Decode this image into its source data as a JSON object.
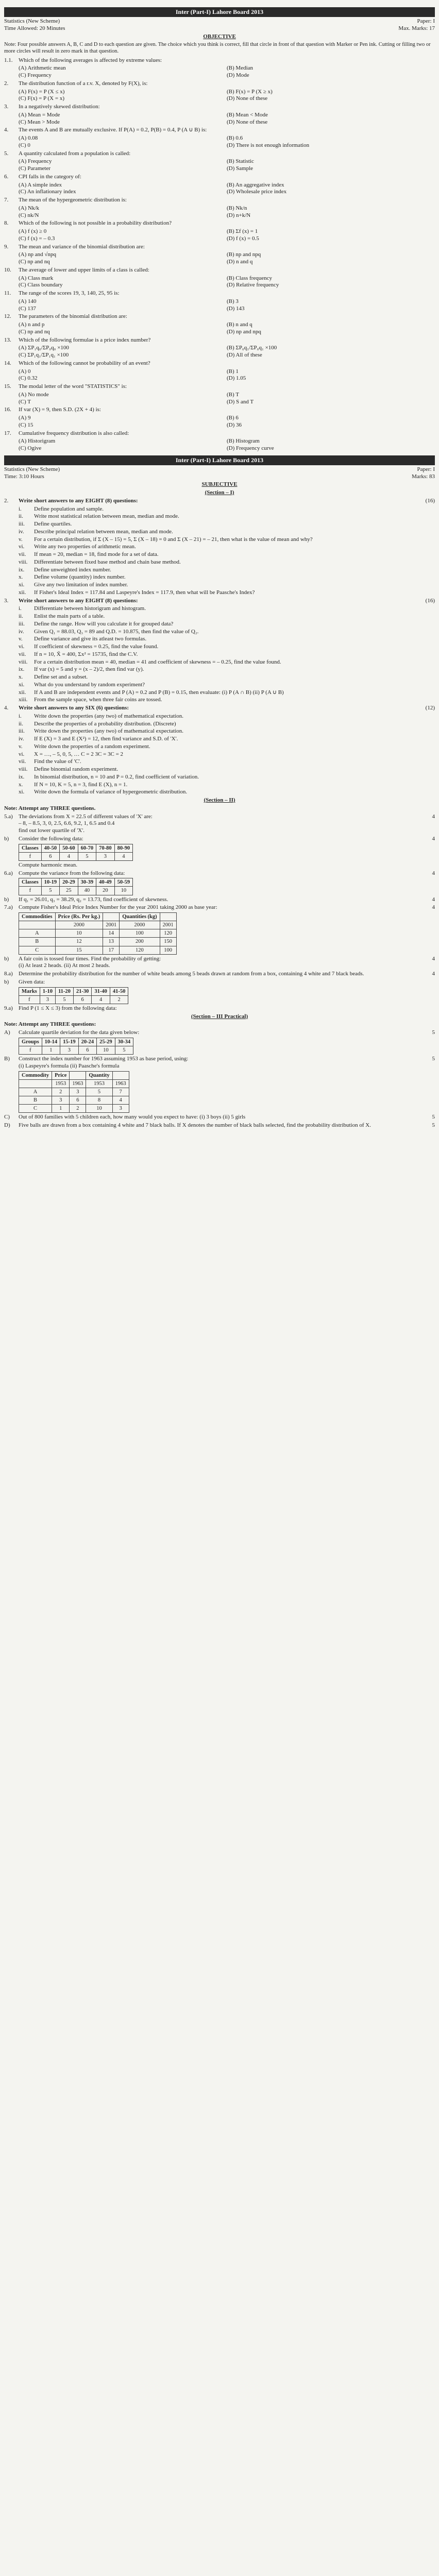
{
  "exam": {
    "title1": "Inter (Part-I) Lahore Board 2013",
    "title2": "Inter (Part-I) Lahore Board 2013",
    "subject": "Statistics (New Scheme)",
    "paper": "Paper: I",
    "time_obj": "Time Allowed: 20 Minutes",
    "marks_obj": "Max. Marks: 17",
    "time_subj": "Time: 3:10 Hours",
    "marks_subj": "Marks: 83",
    "objective_label": "OBJECTIVE",
    "subjective_label": "SUBJECTIVE",
    "section1": "(Section – I)",
    "section2": "(Section – II)",
    "section3": "(Section – III Practical)",
    "note_obj": "Note: Four possible answers A, B, C and D to each question are given. The choice which you think is correct, fill that circle in front of that question with Marker or Pen ink. Cutting or filling two or more circles will result in zero mark in that question.",
    "note_short2": "Write short answers to any EIGHT (8) questions:",
    "note_short3": "Write short answers to any EIGHT (8) questions:",
    "note_short4": "Write short answers to any SIX (6) questions:",
    "note_sec2": "Note: Attempt any THREE questions.",
    "note_sec3": "Note: Attempt any THREE questions:",
    "marks16": "(16)",
    "marks12": "(12)"
  },
  "obj_q": [
    {
      "n": "1.1.",
      "t": "Which of the following averages is affected by extreme values:",
      "o": [
        "(A) Arithmetic mean",
        "(B) Median",
        "(C) Frequency",
        "(D) Mode"
      ]
    },
    {
      "n": "2.",
      "t": "The distribution function of a r.v. X, denoted by F(X), is:",
      "o": [
        "(A) F(x) = P (X ≤ x)",
        "(B) F(x) = P (X ≥ x)",
        "(C) F(x) = P (X = x)",
        "(D) None of these"
      ]
    },
    {
      "n": "3.",
      "t": "In a negatively skewed distribution:",
      "o": [
        "(A) Mean = Mode",
        "(B) Mean < Mode",
        "(C) Mean > Mode",
        "(D) None of these"
      ]
    },
    {
      "n": "4.",
      "t": "The events A and B are mutually exclusive. If P(A) = 0.2, P(B) = 0.4, P (A ∪ B) is:",
      "o": [
        "(A) 0.08",
        "(B) 0.6",
        "(C) 0",
        "(D) There is not enough information"
      ],
      "w4": false
    },
    {
      "n": "5.",
      "t": "A quantity calculated from a population is called:",
      "o": [
        "(A) Frequency",
        "(B) Statistic",
        "(C) Parameter",
        "(D) Sample"
      ]
    },
    {
      "n": "6.",
      "t": "CPI falls in the category of:",
      "o": [
        "(A) A simple index",
        "(B) An aggregative index",
        "(C) An inflationary index",
        "(D) Wholesale price index"
      ]
    },
    {
      "n": "7.",
      "t": "The mean of the hypergeometric distribution is:",
      "o": [
        "(A) Nk/k",
        "(B) Nk/n",
        "(C) nk/N",
        "(D) n+k/N"
      ]
    },
    {
      "n": "8.",
      "t": "Which of the following is not possible in a probability distribution?",
      "o": [
        "(A) f (x) ≥ 0",
        "(B) Σf (x) = 1",
        "(C) f (x) = – 0.3",
        "(D) f (x) = 0.5"
      ]
    },
    {
      "n": "9.",
      "t": "The mean and variance of the binomial distribution are:",
      "o": [
        "(A) np and √npq",
        "(B) np and npq",
        "(C) np and nq",
        "(D) n and q"
      ]
    },
    {
      "n": "10.",
      "t": "The average of lower and upper limits of a class is called:",
      "o": [
        "(A) Class mark",
        "(B) Class frequency",
        "(C) Class boundary",
        "(D) Relative frequency"
      ]
    },
    {
      "n": "11.",
      "t": "The range of the scores 19, 3, 140, 25, 95 is:",
      "o": [
        "(A) 140",
        "(B) 3",
        "(C) 137",
        "(D) 143"
      ]
    },
    {
      "n": "12.",
      "t": "The parameters of the binomial distribution are:",
      "o": [
        "(A) n and p",
        "(B) n and q",
        "(C) np and nq",
        "(D) np and npq"
      ]
    },
    {
      "n": "13.",
      "t": "Which of the following formulae is a price index number?",
      "o": [
        "(A) ΣP₁q₀/ΣP₀q₀ ×100",
        "(B) ΣP₀q₁/ΣP₀q₁ ×100",
        "(C) ΣP₁q₁/ΣP₁q₁ ×100",
        "(D) All of these"
      ]
    },
    {
      "n": "14.",
      "t": "Which of the following cannot be probability of an event?",
      "o": [
        "(A) 0",
        "(B) 1",
        "(C) 0.32",
        "(D) 1.05"
      ]
    },
    {
      "n": "15.",
      "t": "The modal letter of the word \"STATISTICS\" is:",
      "o": [
        "(A) No mode",
        "(B) T",
        "(C) T",
        "(D) S and T"
      ]
    },
    {
      "n": "16.",
      "t": "If var (X) = 9, then S.D. (2X + 4) is:",
      "o": [
        "(A) 9",
        "(B) 6",
        "(C) 15",
        "(D) 36"
      ]
    },
    {
      "n": "17.",
      "t": "Cumulative frequency distribution is also called:",
      "o": [
        "(A) Historigram",
        "(B) Histogram",
        "(C) Ogive",
        "(D) Frequency curve"
      ]
    }
  ],
  "q2": [
    {
      "n": "i.",
      "t": "Define population and sample."
    },
    {
      "n": "ii.",
      "t": "Write most statistical relation between mean, median and mode."
    },
    {
      "n": "iii.",
      "t": "Define quartiles."
    },
    {
      "n": "iv.",
      "t": "Describe principal relation between mean, median and mode."
    },
    {
      "n": "v.",
      "t": "For a certain distribution, if Σ (X – 15) = 5, Σ (X – 18) = 0 and Σ (X – 21) = – 21, then what is the value of mean and why?"
    },
    {
      "n": "vi.",
      "t": "Write any two properties of arithmetic mean."
    },
    {
      "n": "vii.",
      "t": "If mean = 20, median = 18, find mode for a set of data."
    },
    {
      "n": "viii.",
      "t": "Differentiate between fixed base method and chain base method."
    },
    {
      "n": "ix.",
      "t": "Define unweighted index number."
    },
    {
      "n": "x.",
      "t": "Define volume (quantity) index number."
    },
    {
      "n": "xi.",
      "t": "Give any two limitation of index number."
    },
    {
      "n": "xii.",
      "t": "If Fisher's Ideal Index = 117.84 and Laspeyre's Index = 117.9, then what will be Paasche's Index?"
    }
  ],
  "q3": [
    {
      "n": "i.",
      "t": "Differentiate between historigram and histogram."
    },
    {
      "n": "ii.",
      "t": "Enlist the main parts of a table."
    },
    {
      "n": "iii.",
      "t": "Define the range. How will you calculate it for grouped data?"
    },
    {
      "n": "iv.",
      "t": "Given Q₁ = 88.03, Q₃ = 89 and Q.D. = 10.875, then find the value of Q₂."
    },
    {
      "n": "v.",
      "t": "Define variance and give its atleast two formulas."
    },
    {
      "n": "vi.",
      "t": "If coefficient of skewness = 0.25, find the value found."
    },
    {
      "n": "vii.",
      "t": "If n = 10, X̄ = 400, Σx² = 15735, find the C.V."
    },
    {
      "n": "viii.",
      "t": "For a certain distribution mean = 40, median = 41 and coefficient of skewness = – 0.25, find the value found."
    },
    {
      "n": "ix.",
      "t": "If var (x) = 5 and y = (x – 2)/2, then find var (y)."
    },
    {
      "n": "x.",
      "t": "Define set and a subset."
    },
    {
      "n": "xi.",
      "t": "What do you understand by random experiment?"
    },
    {
      "n": "xii.",
      "t": "If A and B are independent events and P (A) = 0.2 and P (B) = 0.15, then evaluate: (i) P (A ∩ B)  (ii) P (A ∪ B)"
    },
    {
      "n": "xiii.",
      "t": "From the sample space, when three fair coins are tossed."
    }
  ],
  "q4": [
    {
      "n": "i.",
      "t": "Write down the properties (any two) of mathematical expectation."
    },
    {
      "n": "ii.",
      "t": "Describe the properties of a probability distribution. (Discrete)"
    },
    {
      "n": "iii.",
      "t": "Write down the properties (any two) of mathematical expectation."
    },
    {
      "n": "iv.",
      "t": "If E (X) = 3 and E (X²) = 12, then find variance and S.D. of 'X'."
    },
    {
      "n": "v.",
      "t": "Write down the properties of a random experiment."
    },
    {
      "n": "vi.",
      "t": "X = …, – 5, 0, 5, …  C = 2  3C = 3C = 2"
    },
    {
      "n": "vii.",
      "t": "Find the value of 'C'."
    },
    {
      "n": "viii.",
      "t": "Define binomial random experiment."
    },
    {
      "n": "ix.",
      "t": "In binomial distribution, n = 10 and P = 0.2, find coefficient of variation."
    },
    {
      "n": "x.",
      "t": "If N = 10, K = 5, n = 3, find E (X), n = 1."
    },
    {
      "n": "xi.",
      "t": "Write down the formula of variance of hypergeometric distribution."
    }
  ],
  "sec2": {
    "q5": {
      "a_intro": "The deviations from X = 22.5 of different values of 'X' are:",
      "a_values": "– 8, – 8.5, 3, 0, 2.5, 6.6, 9.2, 1, 6.5 and 0.4",
      "a_task": "find out lower quartile of 'X'.",
      "b_intro": "Consider the following data:",
      "b_task": "Compute harmonic mean."
    },
    "q6": {
      "a_intro": "Compute the variance from the following data:",
      "b": "If q₁ = 26.01, q₃ = 38.29, q₂ = 13.73, find coefficient of skewness."
    },
    "q7": {
      "a_intro": "Compute Fisher's Ideal Price Index Number for the year 2001 taking 2000 as base year:",
      "b_intro": "A fair coin is tossed four times. Find the probability of getting:",
      "b_i": "(i) At least 2 heads.",
      "b_ii": "(ii) At most 2 heads."
    },
    "q8": {
      "a_intro": "Determine the probability distribution for the number of white beads among 5 beads drawn at random from a box, containing 4 white and 7 black beads.",
      "b_intro": "Given data:"
    },
    "q9": {
      "a_intro": "Find P (1 ≤ X ≤ 3) from the following data:"
    }
  },
  "tables": {
    "t5b": {
      "headers": [
        "Classes",
        "40-50",
        "50-60",
        "60-70",
        "70-80",
        "80-90"
      ],
      "rows": [
        [
          "f",
          "6",
          "4",
          "5",
          "3",
          "4"
        ]
      ]
    },
    "t6a": {
      "headers": [
        "Classes",
        "10-19",
        "20-29",
        "30-39",
        "40-49",
        "50-59"
      ],
      "rows": [
        [
          "f",
          "5",
          "25",
          "40",
          "20",
          "10"
        ]
      ]
    },
    "t7a": {
      "headers": [
        "Commodities",
        "Price (Rs. Per kg.)",
        "",
        "Quantities (kg)",
        ""
      ],
      "sub": [
        "",
        "2000",
        "2001",
        "2000",
        "2001"
      ],
      "rows": [
        [
          "A",
          "10",
          "14",
          "100",
          "120"
        ],
        [
          "B",
          "12",
          "13",
          "200",
          "150"
        ],
        [
          "C",
          "15",
          "17",
          "120",
          "100"
        ]
      ]
    },
    "t8b": {
      "headers": [
        "Marks",
        "1-10",
        "11-20",
        "21-30",
        "31-40",
        "41-50"
      ],
      "rows": [
        [
          "f",
          "3",
          "5",
          "6",
          "4",
          "2"
        ]
      ]
    },
    "tA": {
      "headers": [
        "Groups",
        "10-14",
        "15-19",
        "20-24",
        "25-29",
        "30-34"
      ],
      "rows": [
        [
          "f",
          "1",
          "3",
          "6",
          "10",
          "5"
        ]
      ]
    },
    "tB": {
      "intro": "Construct the index number for 1963 assuming 1953 as base period, using:",
      "i": "(i) Laspeyre's formula  (ii) Paasche's formula",
      "headers": [
        "Commodity",
        "Price",
        "",
        "Quantity",
        ""
      ],
      "sub": [
        "",
        "1953",
        "1963",
        "1953",
        "1963"
      ],
      "rows": [
        [
          "A",
          "2",
          "3",
          "5",
          "7"
        ],
        [
          "B",
          "3",
          "6",
          "8",
          "4"
        ],
        [
          "C",
          "1",
          "2",
          "10",
          "3"
        ]
      ]
    },
    "tC": "Out of 800 families with 5 children each, how many would you expect to have: (i) 3 boys  (ii) 5 girls",
    "tD": "Five balls are drawn from a box containing 4 white and 7 black balls. If X denotes the number of black balls selected, find the probability distribution of X."
  },
  "practical": {
    "A": "Calculate quartile deviation for the data given below:",
    "hdr": [
      "A)",
      "B)",
      "C)",
      "D)"
    ]
  }
}
